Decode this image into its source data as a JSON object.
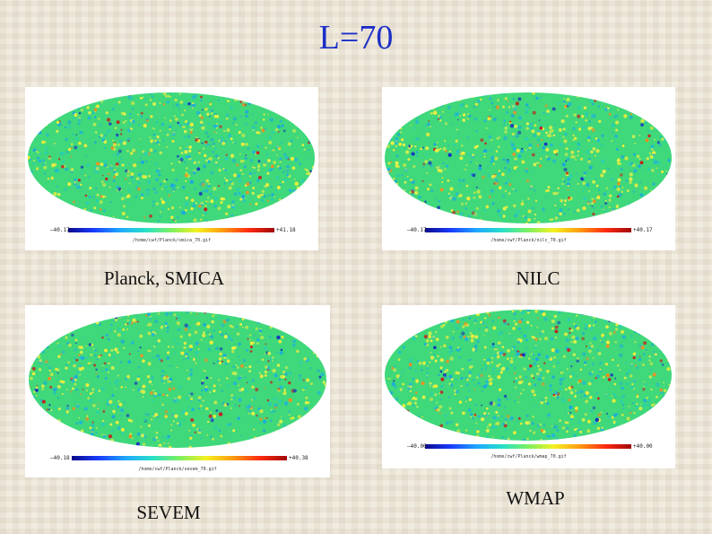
{
  "title": "L=70",
  "maps": [
    {
      "caption": "Planck, SMICA",
      "scale_min": "–40.17",
      "scale_max": "+41.18",
      "file_label": "/home/cwf/Planck/smica_70.gif"
    },
    {
      "caption": "NILC",
      "scale_min": "–40.17",
      "scale_max": "+40.17",
      "file_label": "/home/cwf/Planck/nilc_70.gif"
    },
    {
      "caption": "SEVEM",
      "scale_min": "–40.18",
      "scale_max": "+40.38",
      "file_label": "/home/cwf/Planck/sevem_70.gif"
    },
    {
      "caption": "WMAP",
      "scale_min": "–40.00",
      "scale_max": "+40.00",
      "file_label": "/home/cwf/Planck/wmap_70.gif"
    }
  ],
  "colors": {
    "title": "#1c2fc8",
    "map_base": "#3fd87a",
    "colorbar": [
      "#0a0a8a",
      "#1a3cff",
      "#1ea7ff",
      "#27e0c8",
      "#7cf060",
      "#f4f020",
      "#ff9a10",
      "#ff2a10",
      "#a00808"
    ]
  }
}
